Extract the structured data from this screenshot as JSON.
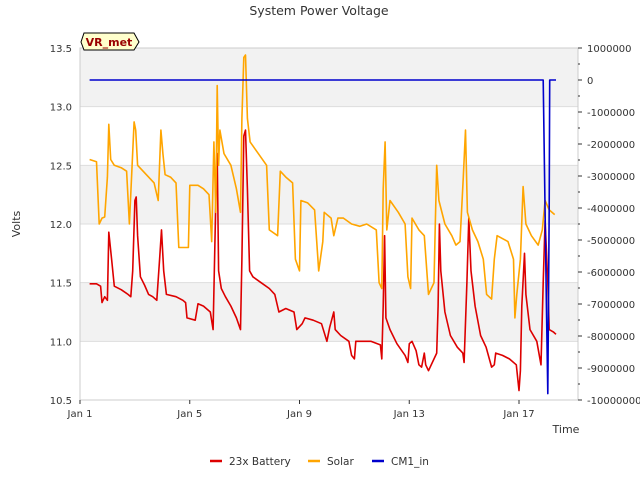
{
  "chart_data": {
    "type": "line",
    "title": "System Power Voltage",
    "xlabel": "Time",
    "ylabel": "Volts",
    "annotation": "VR_met",
    "x_ticks": [
      {
        "day": 1,
        "label": "Jan 1"
      },
      {
        "day": 5,
        "label": "Jan 5"
      },
      {
        "day": 9,
        "label": "Jan 9"
      },
      {
        "day": 13,
        "label": "Jan 13"
      },
      {
        "day": 17,
        "label": "Jan 17"
      }
    ],
    "xlim": [
      1,
      19.15
    ],
    "ylim_left": [
      10.5,
      13.5
    ],
    "ylim_right": [
      -10000000,
      1000000
    ],
    "y_left_ticks": [
      "10.5",
      "11.0",
      "11.5",
      "12.0",
      "12.5",
      "13.0",
      "13.5"
    ],
    "y_right_ticks": [
      "-10000000",
      "-9000000",
      "-8000000",
      "-7000000",
      "-6000000",
      "-5000000",
      "-4000000",
      "-3000000",
      "-2000000",
      "-1000000",
      "0",
      "1000000"
    ],
    "bands": [
      [
        11.0,
        11.5
      ],
      [
        12.0,
        12.5
      ],
      [
        13.0,
        13.5
      ]
    ],
    "legend": {
      "position": "bottom-center"
    },
    "series": [
      {
        "name": "23x Battery",
        "color": "#dd0000",
        "axis": "left",
        "points": [
          [
            1.35,
            11.49
          ],
          [
            1.6,
            11.49
          ],
          [
            1.75,
            11.47
          ],
          [
            1.8,
            11.33
          ],
          [
            1.9,
            11.38
          ],
          [
            2.0,
            11.35
          ],
          [
            2.05,
            11.93
          ],
          [
            2.15,
            11.7
          ],
          [
            2.25,
            11.47
          ],
          [
            2.5,
            11.44
          ],
          [
            2.75,
            11.4
          ],
          [
            2.85,
            11.38
          ],
          [
            2.92,
            11.6
          ],
          [
            3.0,
            12.2
          ],
          [
            3.05,
            12.23
          ],
          [
            3.1,
            11.9
          ],
          [
            3.2,
            11.55
          ],
          [
            3.35,
            11.48
          ],
          [
            3.5,
            11.4
          ],
          [
            3.65,
            11.38
          ],
          [
            3.8,
            11.35
          ],
          [
            3.9,
            11.7
          ],
          [
            3.97,
            11.95
          ],
          [
            4.05,
            11.6
          ],
          [
            4.15,
            11.4
          ],
          [
            4.5,
            11.38
          ],
          [
            4.75,
            11.35
          ],
          [
            4.85,
            11.33
          ],
          [
            4.9,
            11.2
          ],
          [
            5.2,
            11.18
          ],
          [
            5.3,
            11.32
          ],
          [
            5.5,
            11.3
          ],
          [
            5.75,
            11.25
          ],
          [
            5.85,
            11.1
          ],
          [
            5.95,
            12.2
          ],
          [
            6.0,
            12.6
          ],
          [
            6.05,
            11.6
          ],
          [
            6.15,
            11.45
          ],
          [
            6.3,
            11.38
          ],
          [
            6.5,
            11.3
          ],
          [
            6.7,
            11.2
          ],
          [
            6.85,
            11.1
          ],
          [
            6.9,
            11.7
          ],
          [
            6.97,
            12.75
          ],
          [
            7.03,
            12.8
          ],
          [
            7.1,
            12.3
          ],
          [
            7.18,
            11.6
          ],
          [
            7.3,
            11.55
          ],
          [
            7.6,
            11.5
          ],
          [
            7.9,
            11.45
          ],
          [
            8.1,
            11.4
          ],
          [
            8.25,
            11.25
          ],
          [
            8.5,
            11.28
          ],
          [
            8.8,
            11.25
          ],
          [
            8.9,
            11.1
          ],
          [
            9.1,
            11.15
          ],
          [
            9.2,
            11.2
          ],
          [
            9.5,
            11.18
          ],
          [
            9.8,
            11.15
          ],
          [
            10.0,
            11.0
          ],
          [
            10.1,
            11.12
          ],
          [
            10.25,
            11.25
          ],
          [
            10.3,
            11.1
          ],
          [
            10.5,
            11.05
          ],
          [
            10.8,
            11.0
          ],
          [
            10.9,
            10.88
          ],
          [
            11.0,
            10.85
          ],
          [
            11.05,
            11.0
          ],
          [
            11.3,
            11.0
          ],
          [
            11.6,
            11.0
          ],
          [
            11.95,
            10.97
          ],
          [
            12.0,
            10.85
          ],
          [
            12.05,
            11.3
          ],
          [
            12.1,
            11.9
          ],
          [
            12.15,
            11.2
          ],
          [
            12.3,
            11.1
          ],
          [
            12.55,
            10.98
          ],
          [
            12.85,
            10.88
          ],
          [
            12.95,
            10.82
          ],
          [
            13.0,
            10.98
          ],
          [
            13.1,
            11.0
          ],
          [
            13.25,
            10.92
          ],
          [
            13.35,
            10.8
          ],
          [
            13.45,
            10.78
          ],
          [
            13.55,
            10.9
          ],
          [
            13.6,
            10.8
          ],
          [
            13.7,
            10.75
          ],
          [
            14.0,
            10.9
          ],
          [
            14.05,
            11.3
          ],
          [
            14.1,
            12.0
          ],
          [
            14.15,
            11.6
          ],
          [
            14.3,
            11.25
          ],
          [
            14.5,
            11.05
          ],
          [
            14.75,
            10.95
          ],
          [
            14.95,
            10.9
          ],
          [
            15.0,
            10.82
          ],
          [
            15.1,
            11.5
          ],
          [
            15.17,
            12.05
          ],
          [
            15.25,
            11.6
          ],
          [
            15.4,
            11.3
          ],
          [
            15.6,
            11.05
          ],
          [
            15.8,
            10.95
          ],
          [
            16.0,
            10.78
          ],
          [
            16.1,
            10.8
          ],
          [
            16.15,
            10.9
          ],
          [
            16.4,
            10.88
          ],
          [
            16.65,
            10.85
          ],
          [
            16.9,
            10.8
          ],
          [
            17.0,
            10.58
          ],
          [
            17.05,
            10.75
          ],
          [
            17.1,
            11.3
          ],
          [
            17.2,
            11.75
          ],
          [
            17.25,
            11.4
          ],
          [
            17.4,
            11.1
          ],
          [
            17.65,
            11.0
          ],
          [
            17.8,
            10.8
          ],
          [
            17.88,
            11.5
          ],
          [
            17.95,
            12.03
          ],
          [
            18.05,
            11.5
          ],
          [
            18.1,
            11.1
          ],
          [
            18.25,
            11.08
          ],
          [
            18.35,
            11.06
          ]
        ]
      },
      {
        "name": "Solar",
        "color": "#ffa500",
        "axis": "left",
        "points": [
          [
            1.35,
            12.55
          ],
          [
            1.6,
            12.53
          ],
          [
            1.7,
            12.0
          ],
          [
            1.8,
            12.05
          ],
          [
            1.9,
            12.06
          ],
          [
            2.0,
            12.4
          ],
          [
            2.05,
            12.85
          ],
          [
            2.12,
            12.55
          ],
          [
            2.25,
            12.5
          ],
          [
            2.5,
            12.48
          ],
          [
            2.7,
            12.45
          ],
          [
            2.8,
            12.0
          ],
          [
            2.9,
            12.5
          ],
          [
            2.97,
            12.87
          ],
          [
            3.03,
            12.8
          ],
          [
            3.1,
            12.5
          ],
          [
            3.3,
            12.45
          ],
          [
            3.5,
            12.4
          ],
          [
            3.7,
            12.35
          ],
          [
            3.85,
            12.2
          ],
          [
            3.95,
            12.8
          ],
          [
            4.02,
            12.6
          ],
          [
            4.1,
            12.42
          ],
          [
            4.3,
            12.4
          ],
          [
            4.5,
            12.35
          ],
          [
            4.6,
            11.8
          ],
          [
            4.95,
            11.8
          ],
          [
            5.0,
            12.33
          ],
          [
            5.3,
            12.33
          ],
          [
            5.5,
            12.3
          ],
          [
            5.7,
            12.25
          ],
          [
            5.8,
            11.85
          ],
          [
            5.88,
            12.7
          ],
          [
            5.95,
            12.1
          ],
          [
            6.0,
            13.18
          ],
          [
            6.05,
            12.5
          ],
          [
            6.1,
            12.8
          ],
          [
            6.25,
            12.6
          ],
          [
            6.5,
            12.5
          ],
          [
            6.7,
            12.3
          ],
          [
            6.85,
            12.1
          ],
          [
            6.9,
            12.9
          ],
          [
            6.97,
            13.42
          ],
          [
            7.03,
            13.44
          ],
          [
            7.1,
            12.9
          ],
          [
            7.2,
            12.7
          ],
          [
            7.5,
            12.6
          ],
          [
            7.8,
            12.5
          ],
          [
            7.9,
            11.95
          ],
          [
            8.2,
            11.9
          ],
          [
            8.3,
            12.45
          ],
          [
            8.5,
            12.4
          ],
          [
            8.75,
            12.35
          ],
          [
            8.85,
            11.7
          ],
          [
            9.0,
            11.6
          ],
          [
            9.05,
            12.2
          ],
          [
            9.3,
            12.18
          ],
          [
            9.55,
            12.12
          ],
          [
            9.7,
            11.6
          ],
          [
            9.85,
            11.85
          ],
          [
            9.9,
            12.1
          ],
          [
            10.15,
            12.05
          ],
          [
            10.25,
            11.9
          ],
          [
            10.4,
            12.05
          ],
          [
            10.6,
            12.05
          ],
          [
            10.9,
            12.0
          ],
          [
            11.2,
            11.98
          ],
          [
            11.45,
            12.0
          ],
          [
            11.8,
            11.95
          ],
          [
            11.9,
            11.5
          ],
          [
            12.0,
            11.45
          ],
          [
            12.05,
            12.3
          ],
          [
            12.12,
            12.7
          ],
          [
            12.18,
            11.95
          ],
          [
            12.3,
            12.2
          ],
          [
            12.6,
            12.1
          ],
          [
            12.85,
            12.0
          ],
          [
            12.95,
            11.55
          ],
          [
            13.05,
            11.45
          ],
          [
            13.1,
            12.05
          ],
          [
            13.35,
            11.95
          ],
          [
            13.55,
            11.9
          ],
          [
            13.7,
            11.4
          ],
          [
            13.9,
            11.5
          ],
          [
            13.95,
            12.0
          ],
          [
            14.0,
            12.5
          ],
          [
            14.08,
            12.2
          ],
          [
            14.3,
            12.0
          ],
          [
            14.55,
            11.9
          ],
          [
            14.7,
            11.82
          ],
          [
            14.85,
            11.85
          ],
          [
            14.97,
            12.4
          ],
          [
            15.05,
            12.8
          ],
          [
            15.12,
            12.1
          ],
          [
            15.3,
            11.95
          ],
          [
            15.5,
            11.85
          ],
          [
            15.7,
            11.7
          ],
          [
            15.82,
            11.4
          ],
          [
            16.0,
            11.36
          ],
          [
            16.1,
            11.7
          ],
          [
            16.2,
            11.9
          ],
          [
            16.6,
            11.85
          ],
          [
            16.8,
            11.7
          ],
          [
            16.85,
            11.2
          ],
          [
            16.92,
            11.4
          ],
          [
            17.05,
            11.7
          ],
          [
            17.15,
            12.32
          ],
          [
            17.25,
            12.0
          ],
          [
            17.45,
            11.9
          ],
          [
            17.7,
            11.82
          ],
          [
            17.85,
            11.95
          ],
          [
            17.95,
            12.2
          ],
          [
            18.1,
            12.12
          ],
          [
            18.3,
            12.08
          ]
        ]
      },
      {
        "name": "CM1_in",
        "color": "#0000cc",
        "axis": "right",
        "points": [
          [
            1.35,
            0
          ],
          [
            17.88,
            0
          ],
          [
            18.0,
            -7000000
          ],
          [
            18.05,
            -9800000
          ],
          [
            18.1,
            -4000000
          ],
          [
            18.12,
            0
          ],
          [
            18.35,
            0
          ]
        ]
      }
    ]
  }
}
